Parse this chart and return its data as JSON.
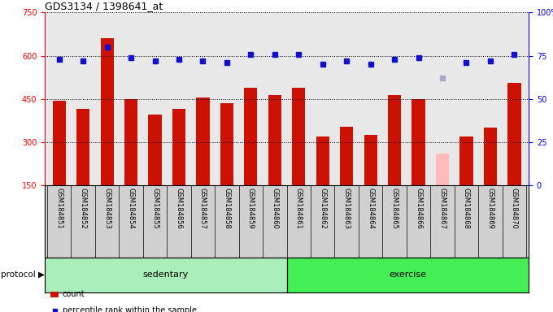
{
  "title": "GDS3134 / 1398641_at",
  "samples": [
    "GSM184851",
    "GSM184852",
    "GSM184853",
    "GSM184854",
    "GSM184855",
    "GSM184856",
    "GSM184857",
    "GSM184858",
    "GSM184859",
    "GSM184860",
    "GSM184861",
    "GSM184862",
    "GSM184863",
    "GSM184864",
    "GSM184865",
    "GSM184866",
    "GSM184867",
    "GSM184868",
    "GSM184869",
    "GSM184870"
  ],
  "counts": [
    445,
    415,
    660,
    450,
    395,
    415,
    455,
    435,
    490,
    465,
    490,
    320,
    355,
    325,
    465,
    450,
    150,
    320,
    350,
    505
  ],
  "absent_values": [
    null,
    null,
    null,
    null,
    null,
    null,
    null,
    null,
    null,
    null,
    null,
    null,
    null,
    null,
    null,
    null,
    260,
    null,
    null,
    null
  ],
  "pct_ranks": [
    73,
    72,
    80,
    74,
    72,
    73,
    72,
    71,
    76,
    76,
    76,
    70,
    72,
    70,
    73,
    74,
    null,
    71,
    72,
    76
  ],
  "absent_pct": [
    null,
    null,
    null,
    null,
    null,
    null,
    null,
    null,
    null,
    null,
    null,
    null,
    null,
    null,
    null,
    null,
    62,
    null,
    null,
    null
  ],
  "n_sedentary": 10,
  "bar_color": "#cc1100",
  "absent_bar_color": "#ffbbbb",
  "rank_color": "#1111cc",
  "absent_rank_color": "#aaaacc",
  "group_color_sed": "#aaeebb",
  "group_color_ex": "#44ee55",
  "ylim": [
    150,
    750
  ],
  "yticks": [
    150,
    300,
    450,
    600,
    750
  ],
  "ylim_r": [
    0,
    100
  ],
  "yticks_r": [
    0,
    25,
    50,
    75,
    100
  ],
  "plot_bg": "#e8e8e8",
  "label_bg": "#d0d0d0"
}
